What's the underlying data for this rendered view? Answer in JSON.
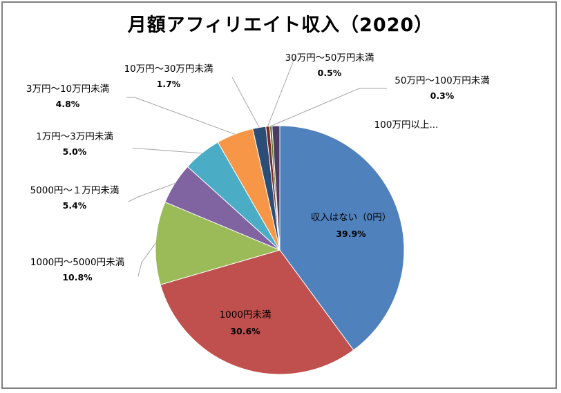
{
  "chart_data": {
    "type": "pie",
    "title": "月額アフィリエイト収入（2020）",
    "slices": [
      {
        "label": "収入はない（0円）",
        "value": 39.9,
        "display": "39.9%",
        "color": "#4f81bd"
      },
      {
        "label": "1000円未満",
        "value": 30.6,
        "display": "30.6%",
        "color": "#c0504d"
      },
      {
        "label": "1000円～5000円未満",
        "value": 10.8,
        "display": "10.8%",
        "color": "#9bbb59"
      },
      {
        "label": "5000円～１万円未満",
        "value": 5.4,
        "display": "5.4%",
        "color": "#8064a2"
      },
      {
        "label": "1万円～3万円未満",
        "value": 5.0,
        "display": "5.0%",
        "color": "#4bacc6"
      },
      {
        "label": "3万円～10万円未満",
        "value": 4.8,
        "display": "4.8%",
        "color": "#f79646"
      },
      {
        "label": "10万円～30万円未満",
        "value": 1.7,
        "display": "1.7%",
        "color": "#2c4d75"
      },
      {
        "label": "30万円～50万円未満",
        "value": 0.5,
        "display": "0.5%",
        "color": "#772c2a"
      },
      {
        "label": "50万円～100万円未満",
        "value": 0.3,
        "display": "0.3%",
        "color": "#5f7530"
      },
      {
        "label": "100万円以上...",
        "value": 1.0,
        "display": "",
        "color": "#4d3b62"
      }
    ]
  }
}
